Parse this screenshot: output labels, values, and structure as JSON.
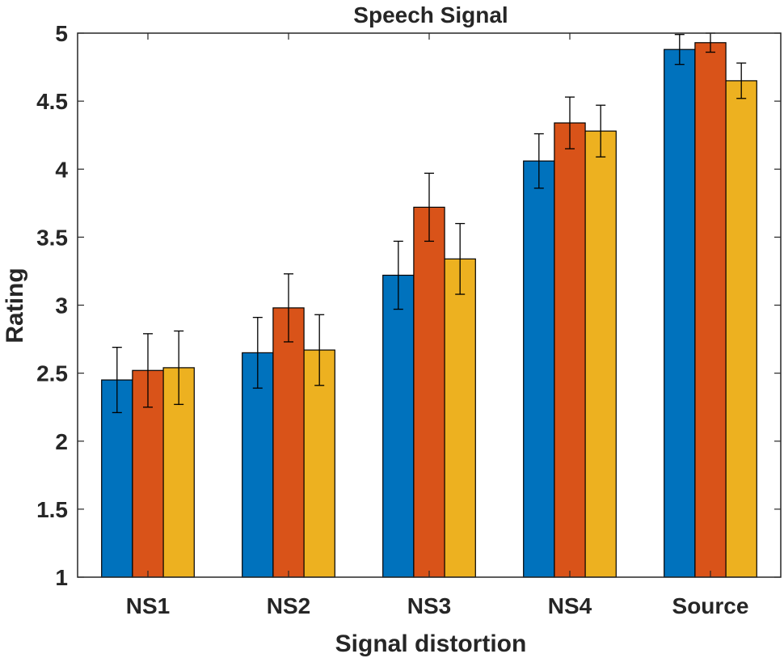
{
  "chart_data": {
    "type": "bar",
    "title": "Speech Signal",
    "xlabel": "Signal distortion",
    "ylabel": "Rating",
    "ylim": [
      1,
      5
    ],
    "yticks": [
      "1",
      "1.5",
      "2",
      "2.5",
      "3",
      "3.5",
      "4",
      "4.5",
      "5"
    ],
    "categories": [
      "NS1",
      "NS2",
      "NS3",
      "NS4",
      "Source"
    ],
    "series": [
      {
        "color": "#0072BD",
        "values": [
          2.45,
          2.65,
          3.22,
          4.06,
          4.88
        ],
        "errors": [
          0.24,
          0.26,
          0.25,
          0.2,
          0.11
        ]
      },
      {
        "color": "#D95319",
        "values": [
          2.52,
          2.98,
          3.72,
          4.34,
          4.93
        ],
        "errors": [
          0.27,
          0.25,
          0.25,
          0.19,
          0.07
        ]
      },
      {
        "color": "#EDB120",
        "values": [
          2.54,
          2.67,
          3.34,
          4.28,
          4.65
        ],
        "errors": [
          0.27,
          0.26,
          0.26,
          0.19,
          0.13
        ]
      }
    ],
    "grid": false,
    "legend": "none"
  }
}
